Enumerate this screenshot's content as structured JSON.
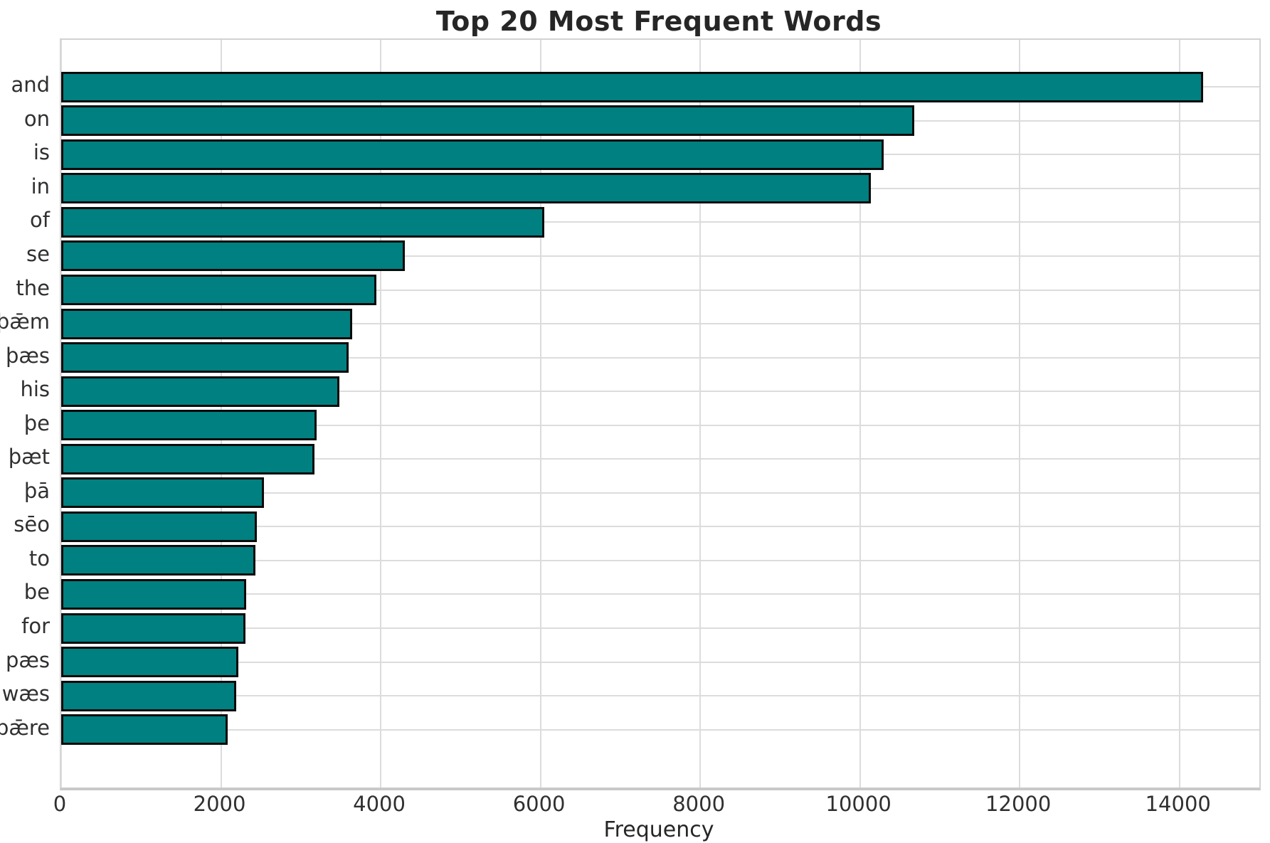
{
  "chart_data": {
    "type": "bar",
    "orientation": "horizontal",
    "title": "Top 20 Most Frequent Words",
    "xlabel": "Frequency",
    "ylabel": "",
    "categories": [
      "and",
      "on",
      "is",
      "in",
      "of",
      "se",
      "the",
      "þǣm",
      "þæs",
      "his",
      "þe",
      "þæt",
      "þā",
      "sēo",
      "to",
      "be",
      "for",
      "pæs",
      "wæs",
      "þǣre"
    ],
    "values": [
      14300,
      10680,
      10300,
      10140,
      6050,
      4300,
      3950,
      3640,
      3600,
      3480,
      3200,
      3170,
      2540,
      2450,
      2430,
      2320,
      2310,
      2220,
      2190,
      2080
    ],
    "xlim": [
      0,
      15000
    ],
    "xticks": [
      0,
      2000,
      4000,
      6000,
      8000,
      10000,
      12000,
      14000
    ],
    "grid": true,
    "legend": "none",
    "bar_color": "#008080",
    "bar_edge_color": "#0a0a0a",
    "grid_color": "#dcdcdc",
    "background_color": "#ffffff",
    "text_color": "#262626"
  }
}
